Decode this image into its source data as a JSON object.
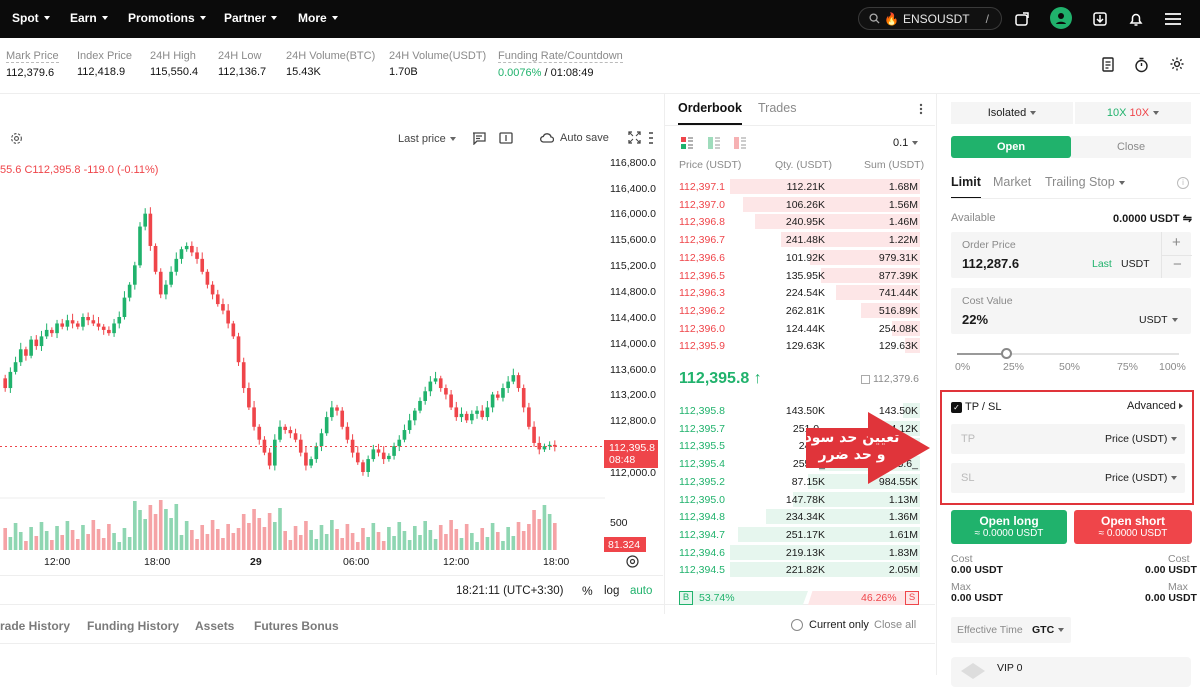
{
  "nav": {
    "items": [
      "Spot",
      "Earn",
      "Promotions",
      "Partner",
      "More"
    ],
    "search": "ENSOUSDT",
    "search_shortcut": "/"
  },
  "ticker": [
    {
      "label": "Mark Price",
      "value": "112,379.6"
    },
    {
      "label": "Index Price",
      "value": "112,418.9"
    },
    {
      "label": "24H High",
      "value": "115,550.4"
    },
    {
      "label": "24H Low",
      "value": "112,136.7"
    },
    {
      "label": "24H Volume(BTC)",
      "value": "15.43K"
    },
    {
      "label": "24H Volume(USDT)",
      "value": "1.70B"
    },
    {
      "label": "Funding Rate/Countdown",
      "rate": "0.0076%",
      "countdown": "/ 01:08:49"
    }
  ],
  "chart": {
    "ohlc_label_left": "55.6",
    "ohlc_label": "C112,395.8  -119.0 (-0.11%)",
    "price_type": "Last price",
    "auto_save": "Auto save",
    "y_ticks": [
      "116,800.0",
      "116,400.0",
      "116,000.0",
      "115,600.0",
      "115,200.0",
      "114,800.0",
      "114,400.0",
      "114,000.0",
      "113,600.0",
      "113,200.0",
      "112,800.0",
      "112,000.0"
    ],
    "price_tag": "112,395.8",
    "price_tag_timer": "08:48",
    "vol_tick": "500",
    "vol_tag": "81.324",
    "x_ticks": [
      "12:00",
      "18:00",
      "29",
      "06:00",
      "12:00",
      "18:00"
    ],
    "time": "18:21:11 (UTC+3:30)",
    "pct": "%",
    "log": "log",
    "auto": "auto"
  },
  "bottom_tabs": [
    "rade History",
    "Funding History",
    "Assets",
    "Futures Bonus"
  ],
  "current_only": "Current only",
  "close_all": "Close all",
  "orderbook": {
    "tabs": [
      "Orderbook",
      "Trades"
    ],
    "precision": "0.1",
    "headers": [
      "Price (USDT)",
      "Qty. (USDT)",
      "Sum (USDT)"
    ],
    "asks": [
      [
        "112,397.1",
        "112.21K",
        "1.68M",
        100
      ],
      [
        "112,397.0",
        "106.26K",
        "1.56M",
        93
      ],
      [
        "112,396.8",
        "240.95K",
        "1.46M",
        87
      ],
      [
        "112,396.7",
        "241.48K",
        "1.22M",
        73
      ],
      [
        "112,396.6",
        "101.92K",
        "979.31K",
        58
      ],
      [
        "112,396.5",
        "135.95K",
        "877.39K",
        52
      ],
      [
        "112,396.3",
        "224.54K",
        "741.44K",
        44
      ],
      [
        "112,396.2",
        "262.81K",
        "516.89K",
        31
      ],
      [
        "112,396.0",
        "124.44K",
        "254.08K",
        15
      ],
      [
        "112,395.9",
        "129.63K",
        "129.63K",
        8
      ]
    ],
    "mid_price": "112,395.8",
    "mid_mark": "112,379.6",
    "bids": [
      [
        "112,395.8",
        "143.50K",
        "143.50K",
        9
      ],
      [
        "112,395.7",
        "251.0_",
        "394.12K",
        24
      ],
      [
        "112,395.5",
        "246._",
        "640.5_",
        38
      ],
      [
        "112,395.4",
        "255.0_",
        "895.6_",
        53
      ],
      [
        "112,395.2",
        "87.15K",
        "984.55K",
        59
      ],
      [
        "112,395.0",
        "147.78K",
        "1.13M",
        67
      ],
      [
        "112,394.8",
        "234.34K",
        "1.36M",
        81
      ],
      [
        "112,394.7",
        "251.17K",
        "1.61M",
        96
      ],
      [
        "112,394.6",
        "219.13K",
        "1.83M",
        100
      ],
      [
        "112,394.5",
        "221.82K",
        "2.05M",
        100
      ]
    ],
    "buy_pct": "53.74%",
    "sell_pct": "46.26%",
    "b": "B",
    "s": "S"
  },
  "annotation": {
    "line1": "تعیین حد سود",
    "line2": "و حد ضرر"
  },
  "panel": {
    "margin_mode": "Isolated",
    "lev_long": "10X",
    "lev_short": "10X",
    "tabs": [
      "Open",
      "Close"
    ],
    "order_types": [
      "Limit",
      "Market",
      "Trailing Stop"
    ],
    "available_label": "Available",
    "available_value": "0.0000 USDT",
    "order_price_label": "Order Price",
    "order_price": "112,287.6",
    "last": "Last",
    "usdt": "USDT",
    "cost_value_label": "Cost Value",
    "cost_value": "22%",
    "cost_unit": "USDT",
    "slider_marks": [
      "0%",
      "25%",
      "50%",
      "75%",
      "100%"
    ],
    "slider_value": 22,
    "tpsl_label": "TP / SL",
    "advanced": "Advanced",
    "tp": "TP",
    "sl": "SL",
    "price_unit": "Price (USDT)",
    "open_long": "Open long",
    "open_long_sub": "≈ 0.0000 USDT",
    "open_short": "Open short",
    "open_short_sub": "≈ 0.0000 USDT",
    "cost_label": "Cost",
    "cost_long": "0.00 USDT",
    "cost_short": "0.00 USDT",
    "max_label": "Max",
    "max_long": "0.00 USDT",
    "max_short": "0.00 USDT",
    "effective_time_label": "Effective Time",
    "effective_time": "GTC",
    "vip": "VIP 0"
  },
  "colors": {
    "green": "#20b26c",
    "red": "#ef454a",
    "dark": "#0b0b0b"
  }
}
